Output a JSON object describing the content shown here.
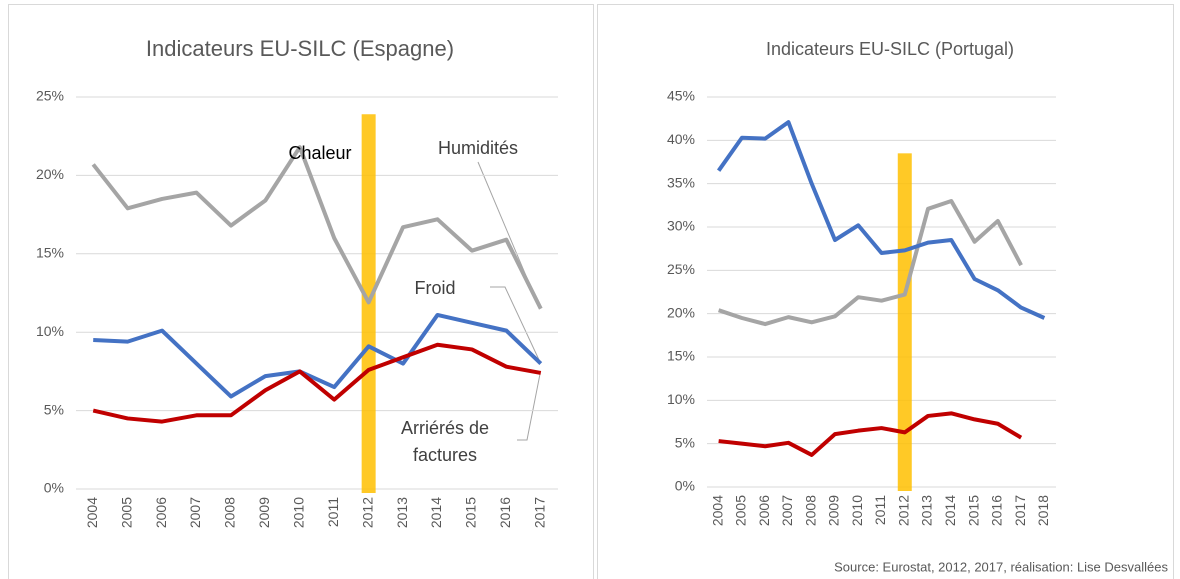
{
  "chart_data": [
    {
      "type": "line",
      "title": "Indicateurs EU-SILC (Espagne)",
      "categories": [
        "2004",
        "2005",
        "2006",
        "2007",
        "2008",
        "2009",
        "2010",
        "2011",
        "2012",
        "2013",
        "2014",
        "2015",
        "2016",
        "2017"
      ],
      "series": [
        {
          "name": "Humidités",
          "color": "#a5a5a5",
          "values": [
            20.7,
            17.9,
            18.5,
            18.9,
            16.8,
            18.4,
            21.8,
            16.0,
            11.9,
            16.7,
            17.2,
            15.2,
            15.9,
            11.5
          ]
        },
        {
          "name": "Froid",
          "color": "#4472c4",
          "values": [
            9.5,
            9.4,
            10.1,
            8.0,
            5.9,
            7.2,
            7.5,
            6.5,
            9.1,
            8.0,
            11.1,
            10.6,
            10.1,
            8.0
          ]
        },
        {
          "name": "Arriérés de factures",
          "color": "#c00000",
          "values": [
            5.0,
            4.5,
            4.3,
            4.7,
            4.7,
            6.3,
            7.5,
            5.7,
            7.6,
            8.4,
            9.2,
            8.9,
            7.8,
            7.4
          ]
        }
      ],
      "highlight": {
        "name": "Chaleur",
        "category": "2012",
        "value": 23.9,
        "color": "#ffc000"
      },
      "ylim": [
        0,
        25
      ],
      "yticks": [
        {
          "value": 0,
          "label": "0%"
        },
        {
          "value": 5,
          "label": "5%"
        },
        {
          "value": 10,
          "label": "10%"
        },
        {
          "value": 15,
          "label": "15%"
        },
        {
          "value": 20,
          "label": "20%"
        },
        {
          "value": 25,
          "label": "25%"
        }
      ],
      "grid": true
    },
    {
      "type": "line",
      "title": "Indicateurs EU-SILC (Portugal)",
      "categories": [
        "2004",
        "2005",
        "2006",
        "2007",
        "2008",
        "2009",
        "2010",
        "2011",
        "2012",
        "2013",
        "2014",
        "2015",
        "2016",
        "2017",
        "2018"
      ],
      "series": [
        {
          "color": "#a5a5a5",
          "values": [
            20.4,
            19.5,
            18.8,
            19.6,
            19.0,
            19.7,
            21.9,
            21.5,
            22.2,
            32.1,
            33.0,
            28.3,
            30.7,
            25.6,
            null
          ]
        },
        {
          "color": "#4472c4",
          "values": [
            36.5,
            40.3,
            40.2,
            42.1,
            35.0,
            28.5,
            30.2,
            27.0,
            27.3,
            28.2,
            28.5,
            24.0,
            22.7,
            20.7,
            19.5
          ]
        },
        {
          "color": "#c00000",
          "values": [
            5.3,
            5.0,
            4.7,
            5.1,
            3.7,
            6.1,
            6.5,
            6.8,
            6.3,
            8.2,
            8.5,
            7.8,
            7.3,
            5.7,
            null
          ]
        }
      ],
      "highlight": {
        "category": "2012",
        "value": 38.5,
        "color": "#ffc000"
      },
      "ylim": [
        0,
        45
      ],
      "yticks": [
        {
          "value": 0,
          "label": "0%"
        },
        {
          "value": 5,
          "label": "5%"
        },
        {
          "value": 10,
          "label": "10%"
        },
        {
          "value": 15,
          "label": "15%"
        },
        {
          "value": 20,
          "label": "20%"
        },
        {
          "value": 25,
          "label": "25%"
        },
        {
          "value": 30,
          "label": "30%"
        },
        {
          "value": 35,
          "label": "35%"
        },
        {
          "value": 40,
          "label": "40%"
        },
        {
          "value": 45,
          "label": "45%"
        }
      ],
      "grid": true
    }
  ],
  "source": "Source: Eurostat, 2012, 2017, réalisation: Lise Desvallées"
}
